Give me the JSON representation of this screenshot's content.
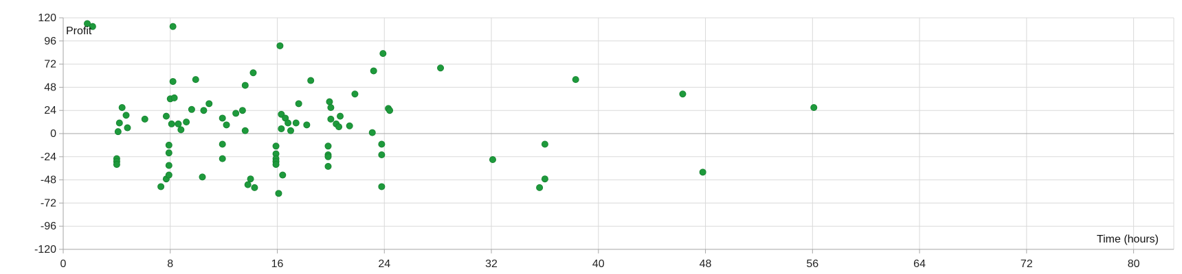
{
  "chart_data": {
    "type": "scatter",
    "xlabel": "Time (hours)",
    "ylabel": "Profit",
    "xlim": [
      0,
      83
    ],
    "ylim": [
      -120,
      120
    ],
    "x_ticks": [
      0,
      8,
      16,
      24,
      32,
      40,
      48,
      56,
      64,
      72,
      80
    ],
    "y_ticks": [
      120,
      96,
      72,
      48,
      24,
      0,
      -24,
      -48,
      -72,
      -96,
      -120
    ],
    "grid": true,
    "legend": "none",
    "colors": {
      "marker": "#1e9a3c",
      "grid": "#d9d9d9",
      "axis": "#a6a6a6",
      "zero_line": "#a6a6a6"
    },
    "series": [
      {
        "points": [
          [
            1.8,
            114
          ],
          [
            2.2,
            111
          ],
          [
            8.2,
            111
          ],
          [
            4,
            -26
          ],
          [
            4,
            -29
          ],
          [
            4,
            -32
          ],
          [
            4.1,
            2
          ],
          [
            4.2,
            11
          ],
          [
            4.4,
            27
          ],
          [
            4.7,
            19
          ],
          [
            4.8,
            6
          ],
          [
            6.1,
            15
          ],
          [
            7.3,
            -55
          ],
          [
            7.7,
            18
          ],
          [
            7.7,
            -47
          ],
          [
            7.9,
            -12
          ],
          [
            7.9,
            -20
          ],
          [
            7.9,
            -33
          ],
          [
            7.9,
            -43
          ],
          [
            8,
            36
          ],
          [
            8.1,
            10
          ],
          [
            8.2,
            54
          ],
          [
            8.3,
            37
          ],
          [
            8.6,
            10
          ],
          [
            8.8,
            4
          ],
          [
            9.2,
            12
          ],
          [
            9.6,
            25
          ],
          [
            9.9,
            56
          ],
          [
            10.5,
            24
          ],
          [
            10.4,
            -45
          ],
          [
            10.9,
            31
          ],
          [
            11.9,
            16
          ],
          [
            11.9,
            -11
          ],
          [
            11.9,
            -26
          ],
          [
            12.2,
            9
          ],
          [
            12.9,
            21
          ],
          [
            13.4,
            24
          ],
          [
            13.6,
            50
          ],
          [
            13.6,
            3
          ],
          [
            13.8,
            -53
          ],
          [
            14,
            -47
          ],
          [
            14.2,
            63
          ],
          [
            14.3,
            -56
          ],
          [
            15.9,
            -13
          ],
          [
            15.9,
            -21
          ],
          [
            15.9,
            -26
          ],
          [
            15.9,
            -29
          ],
          [
            15.9,
            -32
          ],
          [
            16.1,
            -62
          ],
          [
            16.2,
            91
          ],
          [
            16.3,
            20
          ],
          [
            16.3,
            5
          ],
          [
            16.4,
            -43
          ],
          [
            16.6,
            16
          ],
          [
            16.8,
            11
          ],
          [
            17,
            3
          ],
          [
            17.4,
            11
          ],
          [
            17.6,
            31
          ],
          [
            18.2,
            9
          ],
          [
            18.5,
            55
          ],
          [
            19.8,
            -13
          ],
          [
            19.8,
            -22
          ],
          [
            19.8,
            -24
          ],
          [
            19.8,
            -34
          ],
          [
            19.9,
            33
          ],
          [
            20,
            27
          ],
          [
            20,
            15
          ],
          [
            20.4,
            10
          ],
          [
            20.6,
            7
          ],
          [
            20.7,
            18
          ],
          [
            21.4,
            8
          ],
          [
            21.8,
            41
          ],
          [
            23.1,
            1
          ],
          [
            23.2,
            65
          ],
          [
            23.8,
            -11
          ],
          [
            23.8,
            -22
          ],
          [
            23.8,
            -55
          ],
          [
            23.9,
            83
          ],
          [
            24.3,
            26
          ],
          [
            24.4,
            24
          ],
          [
            28.2,
            68
          ],
          [
            32.1,
            -27
          ],
          [
            35.6,
            -56
          ],
          [
            36,
            -11
          ],
          [
            36,
            -47
          ],
          [
            38.3,
            56
          ],
          [
            46.3,
            41
          ],
          [
            47.8,
            -40
          ],
          [
            56.1,
            27
          ]
        ]
      }
    ]
  }
}
